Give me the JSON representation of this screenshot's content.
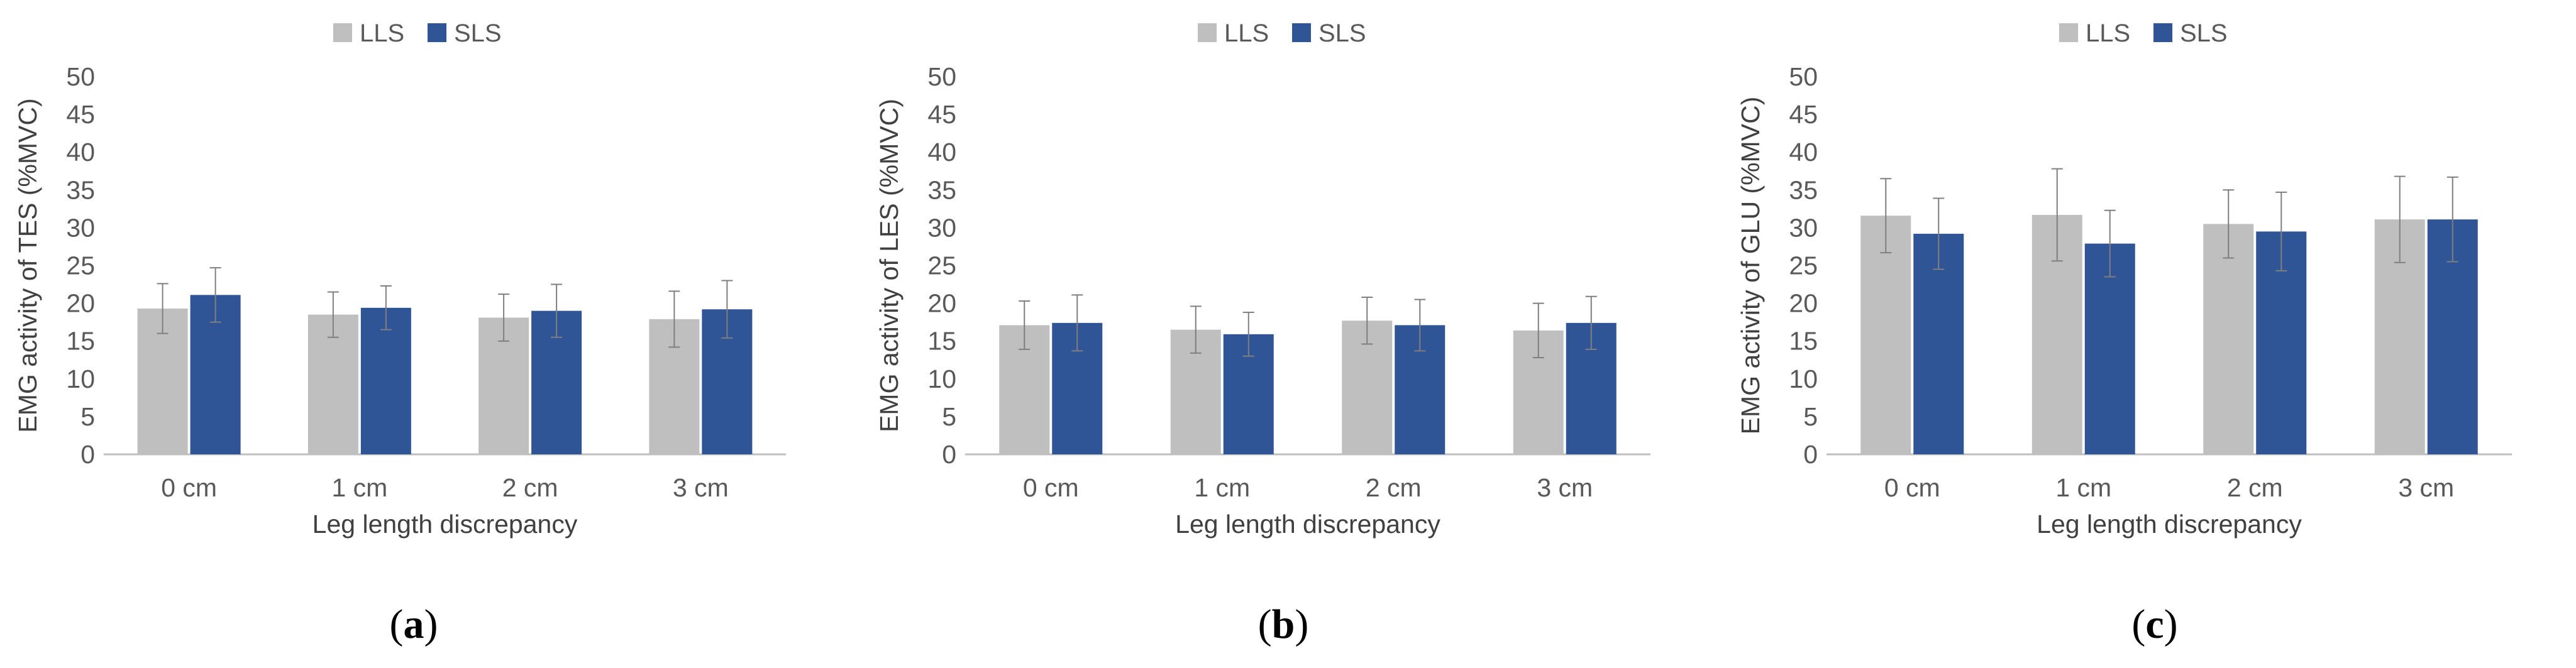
{
  "colors": {
    "LLS": "#bfbfbf",
    "SLS": "#2f5597",
    "axis": "#bfbfbf",
    "error_bar": "#7f7f7f"
  },
  "chart_data": [
    {
      "type": "bar",
      "panel": "a",
      "title": "",
      "xlabel": "Leg length discrepancy",
      "ylabel": "EMG activity of TES (%MVC)",
      "categories": [
        "0 cm",
        "1 cm",
        "2 cm",
        "3 cm"
      ],
      "ylim": [
        0,
        50
      ],
      "yticks": [
        0,
        5,
        10,
        15,
        20,
        25,
        30,
        35,
        40,
        45,
        50
      ],
      "ytick_labels": [
        "0",
        "5",
        "10",
        "15",
        "20",
        "25",
        "30",
        "35",
        "40",
        "45",
        "50"
      ],
      "legend": "top-center",
      "series": [
        {
          "name": "LLS",
          "values": [
            19.3,
            18.5,
            18.1,
            17.9
          ],
          "errors": [
            3.3,
            3.0,
            3.1,
            3.7
          ]
        },
        {
          "name": "SLS",
          "values": [
            21.1,
            19.4,
            19.0,
            19.2
          ],
          "errors": [
            3.6,
            2.9,
            3.5,
            3.8
          ]
        }
      ]
    },
    {
      "type": "bar",
      "panel": "b",
      "title": "",
      "xlabel": "Leg length discrepancy",
      "ylabel": "EMG activity of LES (%MVC)",
      "categories": [
        "0 cm",
        "1 cm",
        "2 cm",
        "3 cm"
      ],
      "ylim": [
        0,
        50
      ],
      "yticks": [
        0,
        5,
        10,
        15,
        20,
        25,
        30,
        35,
        40,
        45,
        50
      ],
      "ytick_labels": [
        "0",
        "5",
        "10",
        "15",
        "20",
        "25",
        "30",
        "35",
        "40",
        "45",
        "50"
      ],
      "legend": "top-center",
      "series": [
        {
          "name": "LLS",
          "values": [
            17.1,
            16.5,
            17.7,
            16.4
          ],
          "errors": [
            3.2,
            3.1,
            3.1,
            3.6
          ]
        },
        {
          "name": "SLS",
          "values": [
            17.4,
            15.9,
            17.1,
            17.4
          ],
          "errors": [
            3.7,
            2.9,
            3.4,
            3.5
          ]
        }
      ]
    },
    {
      "type": "bar",
      "panel": "c",
      "title": "",
      "xlabel": "Leg length discrepancy",
      "ylabel": "EMG activity of GLU (%MVC)",
      "categories": [
        "0 cm",
        "1 cm",
        "2 cm",
        "3 cm"
      ],
      "ylim": [
        0,
        50
      ],
      "yticks": [
        0,
        5,
        10,
        15,
        20,
        25,
        30,
        35,
        40,
        45,
        50
      ],
      "ytick_labels": [
        "0",
        "5",
        "10",
        "15",
        "20",
        "25",
        "30",
        "35",
        "40",
        "45",
        "50"
      ],
      "legend": "top-center",
      "series": [
        {
          "name": "LLS",
          "values": [
            31.6,
            31.7,
            30.5,
            31.1
          ],
          "errors": [
            4.9,
            6.1,
            4.5,
            5.7
          ]
        },
        {
          "name": "SLS",
          "values": [
            29.2,
            27.9,
            29.5,
            31.1
          ],
          "errors": [
            4.7,
            4.4,
            5.2,
            5.6
          ]
        }
      ]
    }
  ],
  "panel_labels": [
    {
      "open": "(",
      "letter": "a",
      "close": ")"
    },
    {
      "open": "(",
      "letter": "b",
      "close": ")"
    },
    {
      "open": "(",
      "letter": "c",
      "close": ")"
    }
  ]
}
